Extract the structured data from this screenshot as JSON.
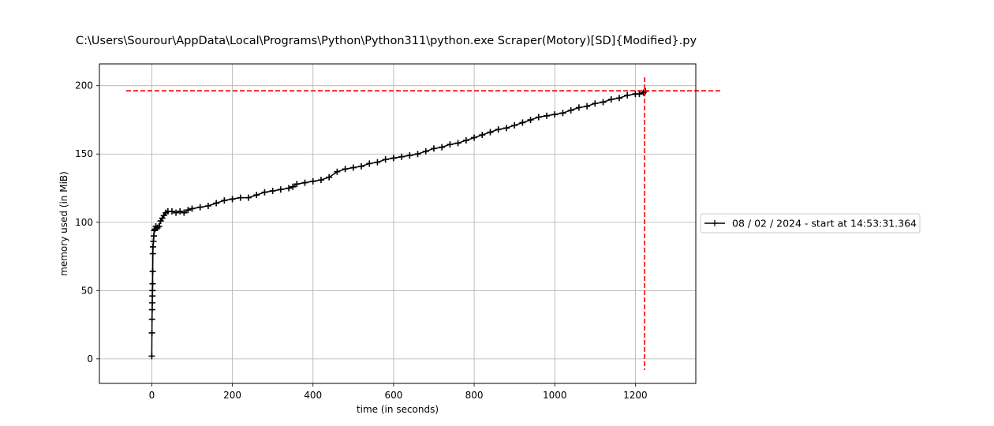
{
  "chart_data": {
    "type": "line",
    "title": "C:\\Users\\Sourour\\AppData\\Local\\Programs\\Python\\Python311\\python.exe Scraper(Motory)[SD]{Modified}.py",
    "xlabel": "time (in seconds)",
    "ylabel": "memory used (in MiB)",
    "xlim": [
      -130,
      1350
    ],
    "ylim": [
      -18,
      216
    ],
    "xticks": [
      0,
      200,
      400,
      600,
      800,
      1000,
      1200
    ],
    "yticks": [
      0,
      50,
      100,
      150,
      200
    ],
    "grid": true,
    "legend_position": "center-right outside",
    "series": [
      {
        "name": "08 / 02 / 2024 - start at 14:53:31.364",
        "color": "#000000",
        "marker": "+",
        "x": [
          0,
          0.3,
          0.6,
          0.9,
          1.2,
          1.5,
          1.8,
          2.1,
          2.4,
          2.7,
          3,
          4,
          5,
          6,
          8,
          10,
          14,
          18,
          22,
          26,
          30,
          35,
          40,
          50,
          60,
          70,
          80,
          90,
          100,
          120,
          140,
          160,
          180,
          200,
          220,
          240,
          260,
          280,
          300,
          320,
          340,
          350,
          360,
          380,
          400,
          420,
          440,
          460,
          480,
          500,
          520,
          540,
          560,
          580,
          600,
          620,
          640,
          660,
          680,
          700,
          720,
          740,
          760,
          780,
          800,
          820,
          840,
          860,
          880,
          900,
          920,
          940,
          960,
          980,
          1000,
          1020,
          1040,
          1060,
          1080,
          1100,
          1120,
          1140,
          1160,
          1180,
          1200,
          1210,
          1220,
          1225
        ],
        "y": [
          2,
          19,
          29,
          36,
          41,
          46,
          50,
          55,
          64,
          77,
          82,
          86,
          90,
          94,
          95,
          97,
          96,
          97,
          101,
          103,
          105,
          107,
          108,
          108,
          107,
          108,
          107,
          109,
          110,
          111,
          112,
          114,
          116,
          117,
          118,
          118,
          120,
          122,
          123,
          124,
          125,
          126,
          128,
          129,
          130,
          131,
          133,
          137,
          139,
          140,
          141,
          143,
          144,
          146,
          147,
          148,
          149,
          150,
          152,
          154,
          155,
          157,
          158,
          160,
          162,
          164,
          166,
          168,
          169,
          171,
          173,
          175,
          177,
          178,
          179,
          180,
          182,
          184,
          185,
          187,
          188,
          190,
          191,
          193,
          194,
          194,
          195,
          196
        ]
      }
    ],
    "max_lines": {
      "y": 196.3,
      "x": 1223,
      "color": "#ff0000"
    }
  }
}
